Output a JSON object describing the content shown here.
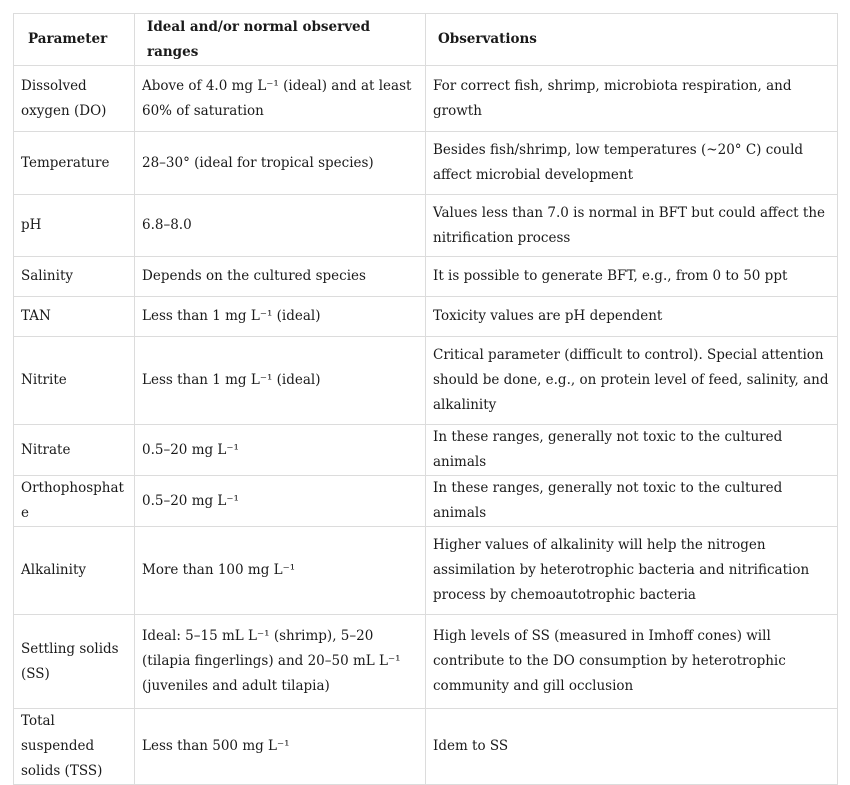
{
  "table": {
    "headers": {
      "parameter": "Parameter",
      "ranges": "Ideal and/or normal observed ranges",
      "observations": "Observations"
    },
    "rows": [
      {
        "parameter": "Dissolved oxygen (DO)",
        "range": "Above of 4.0 mg L⁻¹ (ideal) and at least 60% of saturation",
        "observation": "For correct fish, shrimp, microbiota respiration, and growth"
      },
      {
        "parameter": "Temperature",
        "range": "28–30° (ideal for tropical species)",
        "observation": "Besides fish/shrimp, low temperatures (~20° C) could affect microbial development"
      },
      {
        "parameter": "pH",
        "range": "6.8–8.0",
        "observation": "Values less than 7.0 is normal in BFT but could affect the nitrification process"
      },
      {
        "parameter": "Salinity",
        "range": "Depends on the cultured species",
        "observation": "It is possible to generate BFT, e.g., from 0 to 50 ppt"
      },
      {
        "parameter": "TAN",
        "range": "Less than 1 mg L⁻¹ (ideal)",
        "observation": "Toxicity values are pH dependent"
      },
      {
        "parameter": "Nitrite",
        "range": "Less than 1 mg L⁻¹ (ideal)",
        "observation": "Critical parameter (difficult to control). Special attention should be done, e.g., on protein level of feed, salinity, and alkalinity"
      },
      {
        "parameter": "Nitrate",
        "range": "0.5–20 mg L⁻¹",
        "observation": "In these ranges, generally not toxic to the cultured animals"
      },
      {
        "parameter": "Orthophosphate",
        "range": "0.5–20 mg L⁻¹",
        "observation": "In these ranges, generally not toxic to the cultured animals"
      },
      {
        "parameter": "Alkalinity",
        "range": "More than 100 mg L⁻¹",
        "observation": "Higher values of alkalinity will help the nitrogen assimilation by heterotrophic bacteria and nitrification process by chemoautotrophic bacteria"
      },
      {
        "parameter": "Settling solids (SS)",
        "range": "Ideal: 5–15 mL L⁻¹ (shrimp), 5–20 (tilapia fingerlings) and 20–50 mL L⁻¹ (juveniles and adult tilapia)",
        "observation": "High levels of SS (measured in Imhoff cones) will contribute to the DO consumption by heterotrophic community and gill occlusion"
      },
      {
        "parameter": "Total suspended solids (TSS)",
        "range": "Less than 500 mg L⁻¹",
        "observation": "Idem to SS"
      }
    ]
  }
}
